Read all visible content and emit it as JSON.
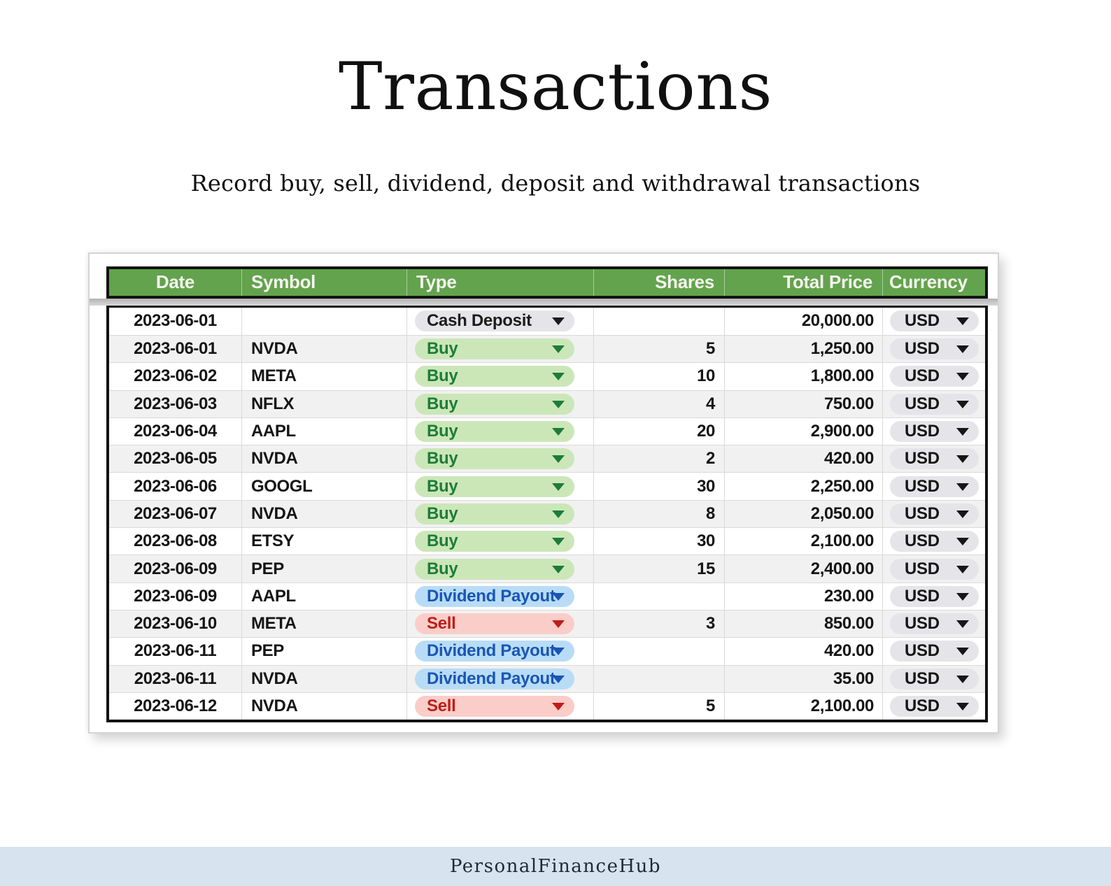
{
  "page": {
    "title": "Transactions",
    "subtitle": "Record buy, sell, dividend, deposit and withdrawal transactions",
    "footer_brand": "PersonalFinanceHub"
  },
  "table": {
    "columns": [
      "Date",
      "Symbol",
      "Type",
      "Shares",
      "Total Price",
      "Currency"
    ],
    "rows": [
      {
        "date": "2023-06-01",
        "symbol": "",
        "type": "Cash Deposit",
        "type_variant": "deposit",
        "shares": "",
        "total_price": "20,000.00",
        "currency": "USD"
      },
      {
        "date": "2023-06-01",
        "symbol": "NVDA",
        "type": "Buy",
        "type_variant": "buy",
        "shares": "5",
        "total_price": "1,250.00",
        "currency": "USD"
      },
      {
        "date": "2023-06-02",
        "symbol": "META",
        "type": "Buy",
        "type_variant": "buy",
        "shares": "10",
        "total_price": "1,800.00",
        "currency": "USD"
      },
      {
        "date": "2023-06-03",
        "symbol": "NFLX",
        "type": "Buy",
        "type_variant": "buy",
        "shares": "4",
        "total_price": "750.00",
        "currency": "USD"
      },
      {
        "date": "2023-06-04",
        "symbol": "AAPL",
        "type": "Buy",
        "type_variant": "buy",
        "shares": "20",
        "total_price": "2,900.00",
        "currency": "USD"
      },
      {
        "date": "2023-06-05",
        "symbol": "NVDA",
        "type": "Buy",
        "type_variant": "buy",
        "shares": "2",
        "total_price": "420.00",
        "currency": "USD"
      },
      {
        "date": "2023-06-06",
        "symbol": "GOOGL",
        "type": "Buy",
        "type_variant": "buy",
        "shares": "30",
        "total_price": "2,250.00",
        "currency": "USD"
      },
      {
        "date": "2023-06-07",
        "symbol": "NVDA",
        "type": "Buy",
        "type_variant": "buy",
        "shares": "8",
        "total_price": "2,050.00",
        "currency": "USD"
      },
      {
        "date": "2023-06-08",
        "symbol": "ETSY",
        "type": "Buy",
        "type_variant": "buy",
        "shares": "30",
        "total_price": "2,100.00",
        "currency": "USD"
      },
      {
        "date": "2023-06-09",
        "symbol": "PEP",
        "type": "Buy",
        "type_variant": "buy",
        "shares": "15",
        "total_price": "2,400.00",
        "currency": "USD"
      },
      {
        "date": "2023-06-09",
        "symbol": "AAPL",
        "type": "Dividend Payout",
        "type_variant": "dividend",
        "shares": "",
        "total_price": "230.00",
        "currency": "USD"
      },
      {
        "date": "2023-06-10",
        "symbol": "META",
        "type": "Sell",
        "type_variant": "sell",
        "shares": "3",
        "total_price": "850.00",
        "currency": "USD"
      },
      {
        "date": "2023-06-11",
        "symbol": "PEP",
        "type": "Dividend Payout",
        "type_variant": "dividend",
        "shares": "",
        "total_price": "420.00",
        "currency": "USD"
      },
      {
        "date": "2023-06-11",
        "symbol": "NVDA",
        "type": "Dividend Payout",
        "type_variant": "dividend",
        "shares": "",
        "total_price": "35.00",
        "currency": "USD"
      },
      {
        "date": "2023-06-12",
        "symbol": "NVDA",
        "type": "Sell",
        "type_variant": "sell",
        "shares": "5",
        "total_price": "2,100.00",
        "currency": "USD"
      }
    ]
  },
  "colors": {
    "header_green": "#63a34d",
    "header_text": "#f5f5ef",
    "row_alt": "#f1f1f2",
    "buy_bg": "#cbe7b8",
    "buy_text": "#1e7c39",
    "sell_bg": "#facdc9",
    "sell_text": "#bf1d18",
    "dividend_bg": "#b9dcf6",
    "dividend_text": "#1956b4",
    "deposit_bg": "#e5e5e9",
    "deposit_text": "#1c1c1c",
    "currency_bg": "#e5e5e9",
    "footer_bg": "#d7e3ee"
  }
}
